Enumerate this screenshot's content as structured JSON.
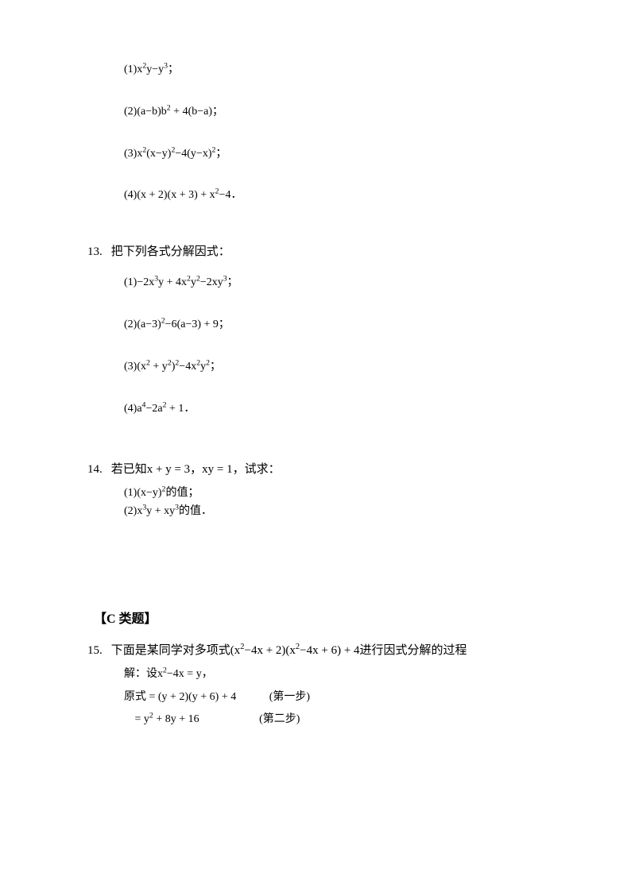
{
  "q12": {
    "items": [
      {
        "n": "(1)",
        "expr": "x<sup>2</sup>y−y<sup>3</sup>",
        "tail": "；"
      },
      {
        "n": "(2)",
        "expr": "(a−b)b<sup>2</sup> + 4(b−a)",
        "tail": "；"
      },
      {
        "n": "(3)",
        "expr": "x<sup>2</sup>(x−y)<sup>2</sup>−4(y−x)<sup>2</sup>",
        "tail": "；"
      },
      {
        "n": "(4)",
        "expr": "(x + 2)(x + 3) + x<sup>2</sup>−4",
        "tail": "．"
      }
    ]
  },
  "q13": {
    "num": "13.",
    "title": "把下列各式分解因式：",
    "items": [
      {
        "n": "(1)",
        "expr": "−2x<sup>3</sup>y + 4x<sup>2</sup>y<sup>2</sup>−2xy<sup>3</sup>",
        "tail": "；"
      },
      {
        "n": "(2)",
        "expr": "(a−3)<sup>2</sup>−6(a−3) + 9",
        "tail": "；"
      },
      {
        "n": "(3)",
        "expr": "(x<sup>2</sup> + y<sup>2</sup>)<sup>2</sup>−4x<sup>2</sup>y<sup>2</sup>",
        "tail": "；"
      },
      {
        "n": "(4)",
        "expr": "a<sup>4</sup>−2a<sup>2</sup> + 1",
        "tail": "．"
      }
    ]
  },
  "q14": {
    "num": "14.",
    "title_html": "若已知x + y = 3，xy = 1，试求：",
    "subs": [
      {
        "html": "(1)(x−y)<sup>2</sup>的值；"
      },
      {
        "html": "(2)x<sup>3</sup>y + xy<sup>3</sup>的值．"
      }
    ]
  },
  "sectionC": "【C 类题】",
  "q15": {
    "num": "15.",
    "title_html": "下面是某同学对多项式(x<sup>2</sup>−4x + 2)(x<sup>2</sup>−4x + 6) + 4进行因式分解的过程",
    "lines": [
      {
        "html": "解：设x<sup>2</sup>−4x = y，",
        "step": ""
      },
      {
        "html": "原式 = (y + 2)(y + 6) + 4",
        "step": "(第一步)"
      },
      {
        "html": "&nbsp;= y<sup>2</sup> + 8y  + 16",
        "step": "(第二步)"
      }
    ]
  }
}
